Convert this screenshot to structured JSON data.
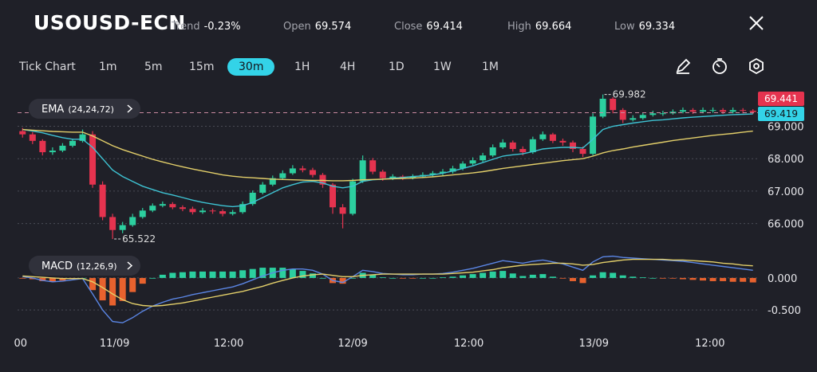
{
  "header": {
    "symbol": "USOUSD-ECN",
    "stats": [
      {
        "label": "Trend",
        "value": "-0.23%"
      },
      {
        "label": "Open",
        "value": "69.574"
      },
      {
        "label": "Close",
        "value": "69.414"
      },
      {
        "label": "High",
        "value": "69.664"
      },
      {
        "label": "Low",
        "value": "69.334"
      }
    ]
  },
  "toolbar": {
    "items": [
      {
        "label": "Tick Chart"
      },
      {
        "label": "1m"
      },
      {
        "label": "5m"
      },
      {
        "label": "15m"
      },
      {
        "label": "30m",
        "selected": true
      },
      {
        "label": "1H"
      },
      {
        "label": "4H"
      },
      {
        "label": "1D"
      },
      {
        "label": "1W"
      },
      {
        "label": "1M"
      }
    ]
  },
  "chart_data": [
    {
      "type": "candlestick",
      "indicator": {
        "name": "EMA",
        "params": "(24,24,72)"
      },
      "xlim": [
        -0.5,
        73.5
      ],
      "ylim": [
        65.4,
        70.07
      ],
      "yticks": [
        {
          "value": 69,
          "label": "69.000"
        },
        {
          "value": 68,
          "label": "68.000"
        },
        {
          "value": 67,
          "label": "67.000"
        },
        {
          "value": 66,
          "label": "66.000"
        }
      ],
      "grid": true,
      "up_color": "#2ccf9f",
      "down_color": "#e5334f",
      "price_line": 69.419,
      "price_line_color": "#33d3e8",
      "ohlc": {
        "open": [
          68.85,
          68.75,
          68.55,
          68.2,
          68.25,
          68.4,
          68.55,
          68.75,
          67.2,
          66.2,
          65.8,
          65.95,
          66.2,
          66.4,
          66.55,
          66.6,
          66.5,
          66.45,
          66.35,
          66.4,
          66.38,
          66.3,
          66.35,
          66.6,
          66.95,
          67.2,
          67.4,
          67.55,
          67.7,
          67.65,
          67.5,
          67.2,
          66.5,
          66.3,
          67.3,
          67.95,
          67.6,
          67.4,
          67.45,
          67.4,
          67.45,
          67.5,
          67.55,
          67.6,
          67.7,
          67.85,
          67.95,
          68.1,
          68.35,
          68.5,
          68.3,
          68.2,
          68.6,
          68.75,
          68.55,
          68.5,
          68.3,
          68.15,
          69.3,
          69.85,
          69.5,
          69.2,
          69.25,
          69.35,
          69.4,
          69.4,
          69.45,
          69.5,
          69.45,
          69.5,
          69.5,
          69.45,
          69.5,
          69.48
        ],
        "high": [
          68.95,
          68.82,
          68.6,
          68.35,
          68.48,
          68.62,
          68.9,
          68.85,
          67.3,
          66.3,
          66.05,
          66.3,
          66.48,
          66.62,
          66.68,
          66.66,
          66.56,
          66.52,
          66.48,
          66.46,
          66.44,
          66.42,
          66.68,
          67.02,
          67.28,
          67.48,
          67.64,
          67.8,
          67.78,
          67.72,
          67.56,
          67.25,
          66.6,
          67.38,
          68.1,
          68.02,
          67.66,
          67.52,
          67.5,
          67.52,
          67.58,
          67.62,
          67.68,
          67.78,
          67.92,
          68.04,
          68.18,
          68.44,
          68.6,
          68.56,
          68.38,
          68.68,
          68.84,
          68.8,
          68.62,
          68.56,
          68.38,
          69.4,
          69.982,
          69.9,
          69.56,
          69.34,
          69.42,
          69.48,
          69.48,
          69.52,
          69.58,
          69.56,
          69.58,
          69.58,
          69.56,
          69.58,
          69.56,
          69.53
        ],
        "low": [
          68.65,
          68.45,
          68.1,
          68.12,
          68.2,
          68.35,
          68.5,
          67.1,
          66.1,
          65.522,
          65.7,
          65.9,
          66.15,
          66.35,
          66.5,
          66.44,
          66.38,
          66.28,
          66.3,
          66.3,
          66.22,
          66.25,
          66.3,
          66.55,
          66.9,
          67.15,
          67.35,
          67.5,
          67.58,
          67.42,
          67.1,
          66.3,
          65.85,
          66.25,
          67.25,
          67.52,
          67.32,
          67.34,
          67.34,
          67.36,
          67.4,
          67.44,
          67.48,
          67.54,
          67.64,
          67.8,
          67.9,
          68.05,
          68.3,
          68.22,
          68.1,
          68.15,
          68.55,
          68.48,
          68.4,
          68.2,
          68.05,
          68.1,
          69.25,
          69.4,
          69.1,
          69.15,
          69.2,
          69.3,
          69.32,
          69.36,
          69.4,
          69.38,
          69.4,
          69.42,
          69.38,
          69.4,
          69.4,
          69.38
        ],
        "close": [
          68.75,
          68.55,
          68.2,
          68.25,
          68.4,
          68.55,
          68.75,
          67.2,
          66.2,
          65.8,
          65.95,
          66.2,
          66.4,
          66.55,
          66.6,
          66.5,
          66.45,
          66.35,
          66.4,
          66.38,
          66.3,
          66.35,
          66.6,
          66.95,
          67.2,
          67.4,
          67.55,
          67.7,
          67.65,
          67.5,
          67.2,
          66.5,
          66.3,
          67.3,
          67.95,
          67.6,
          67.4,
          67.45,
          67.4,
          67.45,
          67.5,
          67.55,
          67.6,
          67.7,
          67.85,
          67.95,
          68.1,
          68.35,
          68.5,
          68.3,
          68.2,
          68.6,
          68.75,
          68.55,
          68.5,
          68.3,
          68.15,
          69.3,
          69.85,
          69.5,
          69.2,
          69.25,
          69.35,
          69.4,
          69.4,
          69.45,
          69.5,
          69.45,
          69.5,
          69.5,
          69.45,
          69.5,
          69.48,
          69.441
        ]
      },
      "lines": [
        {
          "color": "#3ec3d3",
          "values": [
            68.9,
            68.85,
            68.8,
            68.72,
            68.65,
            68.6,
            68.6,
            68.35,
            68.0,
            67.65,
            67.45,
            67.3,
            67.15,
            67.05,
            66.95,
            66.88,
            66.8,
            66.72,
            66.65,
            66.6,
            66.55,
            66.52,
            66.55,
            66.65,
            66.8,
            66.95,
            67.1,
            67.2,
            67.28,
            67.3,
            67.25,
            67.15,
            67.1,
            67.15,
            67.3,
            67.35,
            67.37,
            67.4,
            67.42,
            67.45,
            67.47,
            67.5,
            67.55,
            67.62,
            67.7,
            67.78,
            67.88,
            67.98,
            68.08,
            68.12,
            68.15,
            68.22,
            68.3,
            68.33,
            68.35,
            68.35,
            68.33,
            68.6,
            68.9,
            69.0,
            69.05,
            69.1,
            69.14,
            69.18,
            69.2,
            69.23,
            69.26,
            69.28,
            69.3,
            69.32,
            69.34,
            69.36,
            69.37,
            69.38
          ]
        },
        {
          "color": "#e3cf6a",
          "values": [
            68.9,
            68.88,
            68.86,
            68.84,
            68.83,
            68.82,
            68.82,
            68.7,
            68.55,
            68.4,
            68.28,
            68.18,
            68.08,
            67.98,
            67.9,
            67.82,
            67.75,
            67.68,
            67.62,
            67.56,
            67.5,
            67.46,
            67.43,
            67.41,
            67.39,
            67.37,
            67.36,
            67.35,
            67.34,
            67.33,
            67.33,
            67.32,
            67.32,
            67.33,
            67.35,
            67.36,
            67.37,
            67.38,
            67.39,
            67.4,
            67.42,
            67.44,
            67.47,
            67.5,
            67.53,
            67.56,
            67.6,
            67.65,
            67.7,
            67.74,
            67.78,
            67.82,
            67.86,
            67.9,
            67.94,
            67.97,
            68.0,
            68.08,
            68.18,
            68.25,
            68.3,
            68.36,
            68.41,
            68.46,
            68.51,
            68.56,
            68.6,
            68.64,
            68.68,
            68.72,
            68.75,
            68.78,
            68.82,
            68.85
          ]
        }
      ]
    },
    {
      "type": "macd",
      "indicator": {
        "name": "MACD",
        "params": "(12,26,9)"
      },
      "xlim": [
        -0.5,
        73.5
      ],
      "ylim": [
        -0.76,
        0.36
      ],
      "yticks": [
        {
          "value": 0,
          "label": "0.000"
        },
        {
          "value": -0.5,
          "label": "-0.500"
        }
      ],
      "xticks": [
        {
          "value": -0.2,
          "label": "00"
        },
        {
          "value": 9.2,
          "label": "11/09"
        },
        {
          "value": 20.6,
          "label": "12:00"
        },
        {
          "value": 33.0,
          "label": "12/09"
        },
        {
          "value": 44.6,
          "label": "12:00"
        },
        {
          "value": 57.1,
          "label": "13/09"
        },
        {
          "value": 68.7,
          "label": "12:00"
        }
      ],
      "grid": true,
      "histogram": {
        "up_color": "#2ccf9f",
        "down_color": "#e8622e",
        "values": [
          -0.01,
          -0.02,
          -0.05,
          -0.06,
          -0.04,
          -0.02,
          0.0,
          -0.19,
          -0.35,
          -0.43,
          -0.36,
          -0.22,
          -0.09,
          0.0,
          0.05,
          0.08,
          0.09,
          0.1,
          0.1,
          0.1,
          0.1,
          0.1,
          0.12,
          0.14,
          0.16,
          0.16,
          0.16,
          0.14,
          0.11,
          0.07,
          0.0,
          -0.08,
          -0.09,
          0.0,
          0.08,
          0.05,
          0.01,
          0.0,
          -0.01,
          -0.01,
          0.0,
          0.0,
          0.01,
          0.02,
          0.04,
          0.06,
          0.08,
          0.1,
          0.11,
          0.07,
          0.03,
          0.05,
          0.06,
          0.02,
          -0.01,
          -0.05,
          -0.08,
          0.04,
          0.09,
          0.08,
          0.04,
          0.02,
          0.01,
          0.0,
          -0.01,
          -0.01,
          -0.02,
          -0.03,
          -0.04,
          -0.05,
          -0.05,
          -0.06,
          -0.06,
          -0.07
        ]
      },
      "lines": [
        {
          "color": "#5b86e5",
          "values": [
            0.02,
            0.0,
            -0.04,
            -0.06,
            -0.05,
            -0.03,
            -0.01,
            -0.25,
            -0.5,
            -0.68,
            -0.7,
            -0.62,
            -0.52,
            -0.44,
            -0.38,
            -0.33,
            -0.3,
            -0.26,
            -0.23,
            -0.2,
            -0.17,
            -0.14,
            -0.09,
            -0.03,
            0.03,
            0.08,
            0.12,
            0.14,
            0.14,
            0.12,
            0.06,
            -0.04,
            -0.07,
            0.02,
            0.12,
            0.1,
            0.07,
            0.06,
            0.05,
            0.05,
            0.06,
            0.06,
            0.07,
            0.09,
            0.12,
            0.15,
            0.19,
            0.23,
            0.27,
            0.25,
            0.23,
            0.26,
            0.28,
            0.25,
            0.22,
            0.17,
            0.12,
            0.25,
            0.33,
            0.34,
            0.32,
            0.31,
            0.3,
            0.29,
            0.28,
            0.27,
            0.26,
            0.24,
            0.22,
            0.2,
            0.18,
            0.16,
            0.14,
            0.12
          ]
        },
        {
          "color": "#e3cf6a",
          "values": [
            0.03,
            0.02,
            0.01,
            0.0,
            -0.01,
            -0.01,
            -0.01,
            -0.06,
            -0.15,
            -0.25,
            -0.34,
            -0.4,
            -0.43,
            -0.44,
            -0.43,
            -0.41,
            -0.39,
            -0.36,
            -0.33,
            -0.3,
            -0.27,
            -0.24,
            -0.21,
            -0.17,
            -0.13,
            -0.08,
            -0.04,
            0.0,
            0.03,
            0.05,
            0.06,
            0.04,
            0.02,
            0.02,
            0.04,
            0.05,
            0.06,
            0.06,
            0.06,
            0.06,
            0.06,
            0.06,
            0.06,
            0.07,
            0.08,
            0.09,
            0.11,
            0.13,
            0.16,
            0.18,
            0.2,
            0.21,
            0.22,
            0.23,
            0.23,
            0.22,
            0.2,
            0.21,
            0.24,
            0.26,
            0.28,
            0.29,
            0.29,
            0.29,
            0.29,
            0.28,
            0.28,
            0.27,
            0.26,
            0.25,
            0.23,
            0.22,
            0.2,
            0.19
          ]
        }
      ]
    }
  ]
}
